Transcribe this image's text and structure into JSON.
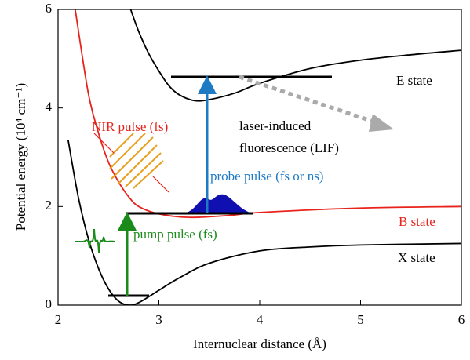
{
  "chart_data": {
    "type": "line",
    "xlabel": "Internuclear distance (Å)",
    "ylabel": "Potential energy (10⁴ cm⁻¹)",
    "xlim": [
      2,
      6
    ],
    "ylim": [
      0,
      6
    ],
    "xticks": [
      2,
      3,
      4,
      5,
      6
    ],
    "yticks": [
      0,
      2,
      4,
      6
    ],
    "series": [
      {
        "name": "X state",
        "color": "#000000",
        "x": [
          2.1,
          2.2,
          2.3,
          2.4,
          2.5,
          2.6,
          2.7,
          2.8,
          3.0,
          3.2,
          3.5,
          4.0,
          4.5,
          5.0,
          6.0
        ],
        "values": [
          3.35,
          2.2,
          1.35,
          0.75,
          0.33,
          0.08,
          0.0,
          0.05,
          0.3,
          0.55,
          0.85,
          1.1,
          1.18,
          1.22,
          1.25
        ]
      },
      {
        "name": "B state",
        "color": "#e8231c",
        "x": [
          2.17,
          2.3,
          2.4,
          2.5,
          2.6,
          2.7,
          2.8,
          3.0,
          3.3,
          3.7,
          4.0,
          5.0,
          6.0
        ],
        "values": [
          6.0,
          4.3,
          3.5,
          2.9,
          2.5,
          2.2,
          2.0,
          1.85,
          1.78,
          1.82,
          1.88,
          1.97,
          2.0
        ]
      },
      {
        "name": "E state",
        "color": "#000000",
        "x": [
          2.72,
          2.8,
          2.9,
          3.0,
          3.1,
          3.2,
          3.35,
          3.5,
          3.75,
          4.0,
          4.5,
          5.0,
          5.5,
          6.0
        ],
        "values": [
          6.0,
          5.55,
          5.1,
          4.75,
          4.45,
          4.27,
          4.15,
          4.17,
          4.3,
          4.5,
          4.8,
          4.97,
          5.08,
          5.17
        ]
      }
    ],
    "annotations": [
      "NIR pulse (fs)",
      "laser-induced",
      "fluorescence (LIF)",
      "probe pulse (fs or ns)",
      "pump pulse (fs)"
    ]
  }
}
